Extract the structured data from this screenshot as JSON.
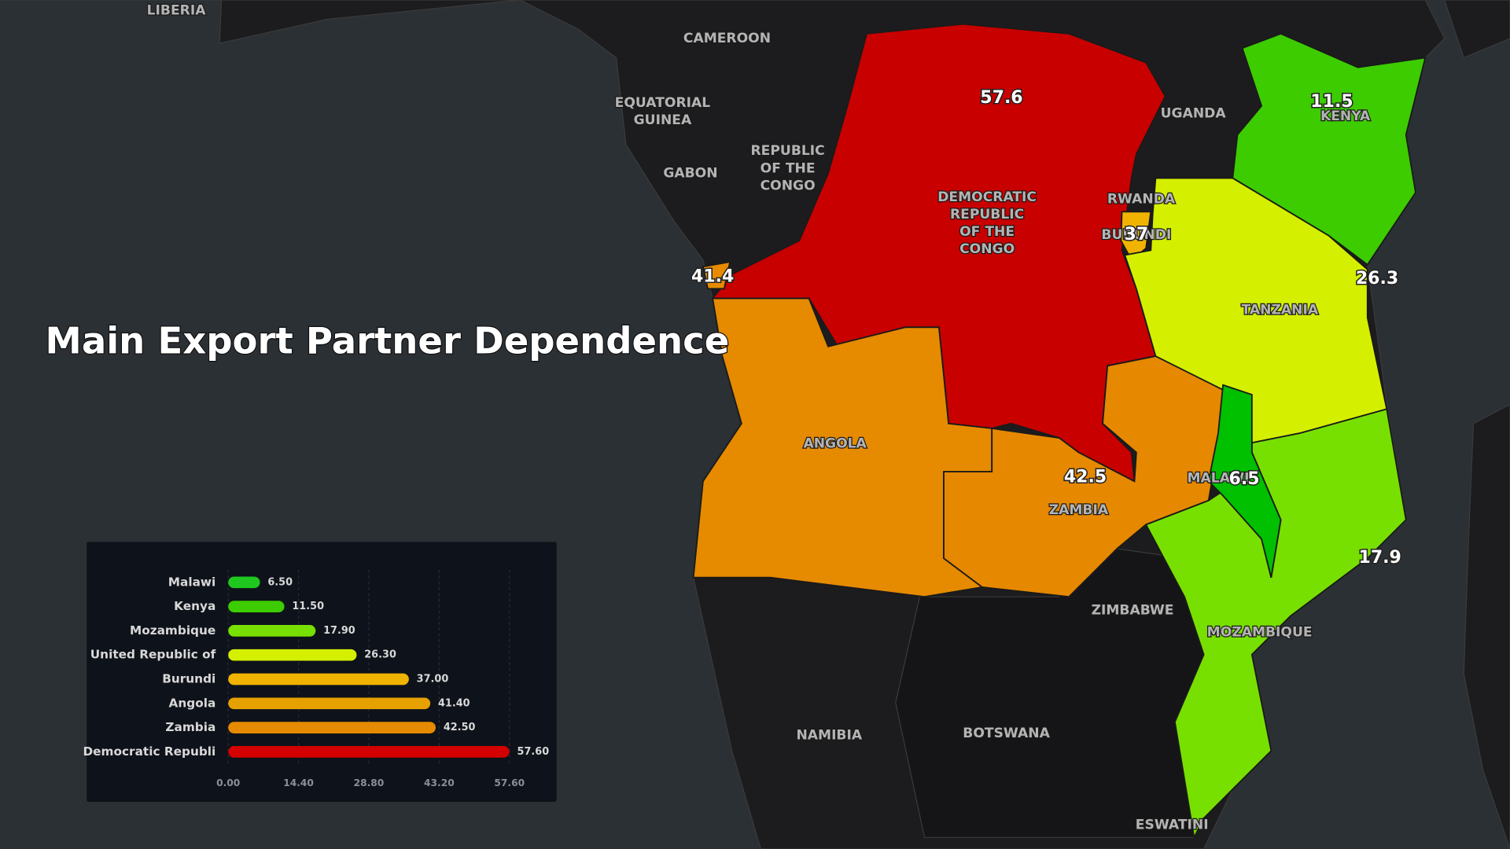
{
  "title": "Main Export Partner Dependence",
  "map": {
    "regions": [
      {
        "label": [
          "DEMOCRATIC",
          "REPUBLIC",
          "OF THE",
          "CONGO"
        ],
        "value": 57.6,
        "color": "#c80000"
      },
      {
        "label": [
          "KENYA"
        ],
        "value": 11.5,
        "color": "#3ccc00"
      },
      {
        "label": [
          "BURUNDI"
        ],
        "value": 37,
        "color": "#f0b400"
      },
      {
        "label": [
          "ANGOLA"
        ],
        "value": 41.4,
        "color": "#e68a00"
      },
      {
        "label": [
          "TANZANIA"
        ],
        "value": 26.3,
        "color": "#d4f000"
      },
      {
        "label": [
          "ZAMBIA"
        ],
        "value": 42.5,
        "color": "#e68800"
      },
      {
        "label": [
          "MOZAMBIQUE"
        ],
        "value": 17.9,
        "color": "#78e000"
      },
      {
        "label": [
          "MALAWI"
        ],
        "value": 6.5,
        "color": "#00c000"
      }
    ],
    "places": [
      [
        "LIBERIA"
      ],
      [
        "CAMEROON"
      ],
      [
        "EQUATORIAL",
        "GUINEA"
      ],
      [
        "GABON"
      ],
      [
        "REPUBLIC",
        "OF THE",
        "CONGO"
      ],
      [
        "UGANDA"
      ],
      [
        "RWANDA"
      ],
      [
        "ZIMBABWE"
      ],
      [
        "NAMIBIA"
      ],
      [
        "BOTSWANA"
      ],
      [
        "ESWATINI"
      ]
    ]
  },
  "chart_data": {
    "type": "bar",
    "orientation": "horizontal",
    "categories": [
      "Malawi",
      "Kenya",
      "Mozambique",
      "United Republic of",
      "Burundi",
      "Angola",
      "Zambia",
      "Democratic Republi"
    ],
    "values": [
      6.5,
      11.5,
      17.9,
      26.3,
      37,
      41.4,
      42.5,
      57.6
    ],
    "value_labels": [
      "6.50",
      "11.50",
      "17.90",
      "26.30",
      "37.00",
      "41.40",
      "42.50",
      "57.60"
    ],
    "colors": [
      "#1ec81e",
      "#3ccc00",
      "#78e000",
      "#d4f000",
      "#f0b400",
      "#e6a000",
      "#e68a00",
      "#d40000"
    ],
    "xlim": [
      0,
      57.6
    ],
    "xticks": [
      {
        "value": 0,
        "label": "0.00"
      },
      {
        "value": 14.4,
        "label": "14.40"
      },
      {
        "value": 28.8,
        "label": "28.80"
      },
      {
        "value": 43.2,
        "label": "43.20"
      },
      {
        "value": 57.6,
        "label": "57.60"
      }
    ],
    "grid": true
  }
}
